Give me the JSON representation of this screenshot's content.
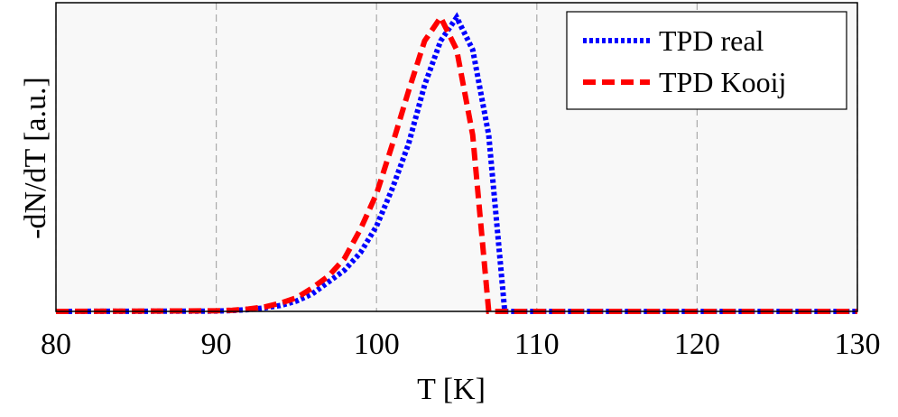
{
  "chart_data": {
    "type": "line",
    "x_label": "T [K]",
    "y_label": "-dN/dT [a.u.]",
    "x": [
      80,
      90,
      91,
      92,
      93,
      94,
      95,
      96,
      97,
      98,
      99,
      100,
      101,
      102,
      103,
      104,
      105,
      106,
      107,
      108,
      130
    ],
    "series": [
      {
        "name": "TPD real",
        "color": "#0000ff",
        "linestyle": "dotted",
        "values": [
          0,
          0.001,
          0.003,
          0.006,
          0.012,
          0.02,
          0.035,
          0.06,
          0.1,
          0.14,
          0.2,
          0.29,
          0.42,
          0.57,
          0.77,
          0.92,
          1.0,
          0.89,
          0.6,
          0,
          0
        ]
      },
      {
        "name": "TPD Kooij",
        "color": "#ff0000",
        "linestyle": "dashed",
        "values": [
          0,
          0.002,
          0.004,
          0.008,
          0.015,
          0.028,
          0.046,
          0.08,
          0.12,
          0.18,
          0.28,
          0.4,
          0.57,
          0.75,
          0.92,
          1.0,
          0.89,
          0.6,
          0,
          0,
          0
        ]
      }
    ],
    "xlim": [
      80,
      130
    ],
    "xticks": [
      80,
      90,
      100,
      110,
      120,
      130
    ],
    "ylim": [
      0,
      1.05
    ],
    "grid": true,
    "legend": "upper right"
  }
}
